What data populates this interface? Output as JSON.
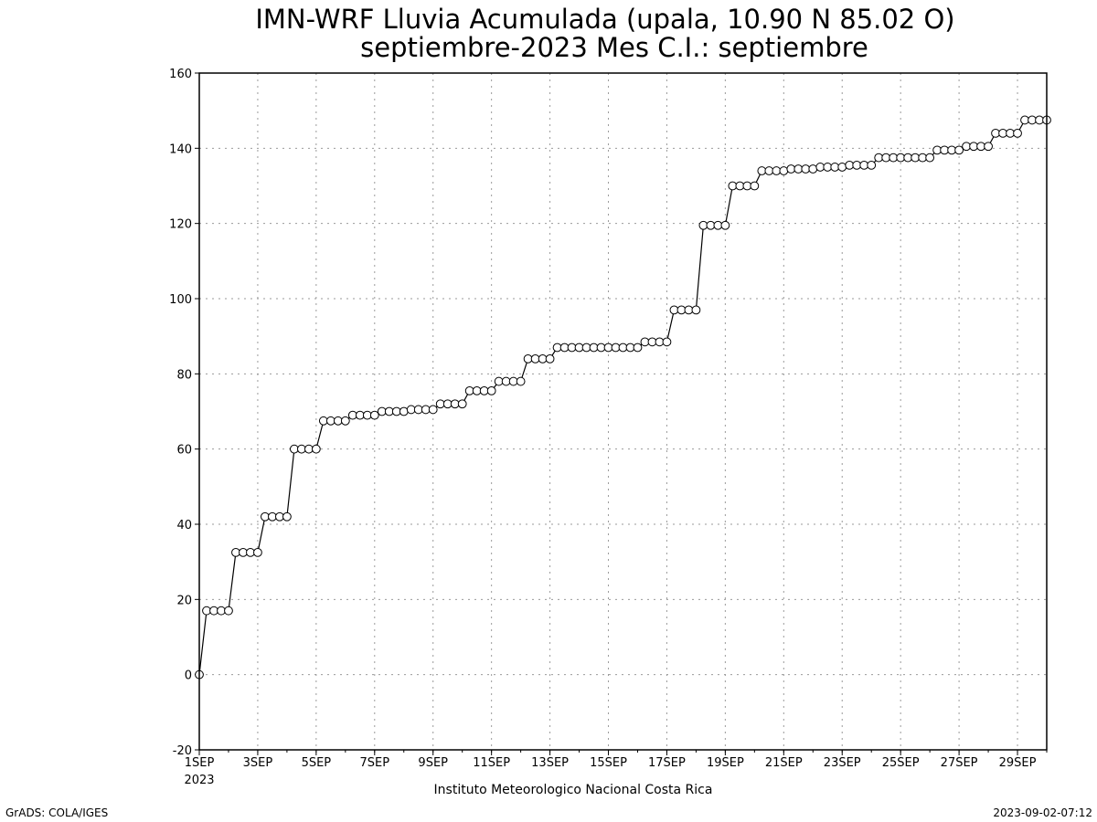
{
  "chart_data": {
    "type": "line",
    "title": "IMN-WRF  Lluvia Acumulada (upala, 10.90  N 85.02  O)",
    "subtitle": "septiembre-2023 Mes C.I.: septiembre",
    "xlabel": "",
    "ylabel": "",
    "x_unit": "day of September 2023",
    "xlim": [
      1,
      30.0
    ],
    "ylim": [
      -20,
      160
    ],
    "y_ticks": [
      -20,
      0,
      20,
      40,
      60,
      80,
      100,
      120,
      140,
      160
    ],
    "x_ticks": [
      {
        "x": 1,
        "label": "1SEP"
      },
      {
        "x": 3,
        "label": "3SEP"
      },
      {
        "x": 5,
        "label": "5SEP"
      },
      {
        "x": 7,
        "label": "7SEP"
      },
      {
        "x": 9,
        "label": "9SEP"
      },
      {
        "x": 11,
        "label": "11SEP"
      },
      {
        "x": 13,
        "label": "13SEP"
      },
      {
        "x": 15,
        "label": "15SEP"
      },
      {
        "x": 17,
        "label": "17SEP"
      },
      {
        "x": 19,
        "label": "19SEP"
      },
      {
        "x": 21,
        "label": "21SEP"
      },
      {
        "x": 23,
        "label": "23SEP"
      },
      {
        "x": 25,
        "label": "25SEP"
      },
      {
        "x": 27,
        "label": "27SEP"
      },
      {
        "x": 29,
        "label": "29SEP"
      }
    ],
    "x_year_label": "2023",
    "grid": true,
    "marker": "open-circle",
    "line_color": "#000000",
    "values": [
      0,
      17,
      17,
      17,
      17,
      32.5,
      32.5,
      32.5,
      32.5,
      42,
      42,
      42,
      42,
      60,
      60,
      60,
      60,
      67.5,
      67.5,
      67.5,
      67.5,
      69,
      69,
      69,
      69,
      70,
      70,
      70,
      70,
      70.5,
      70.5,
      70.5,
      70.5,
      72,
      72,
      72,
      72,
      75.5,
      75.5,
      75.5,
      75.5,
      78,
      78,
      78,
      78,
      84,
      84,
      84,
      84,
      87,
      87,
      87,
      87,
      87,
      87,
      87,
      87,
      87,
      87,
      87,
      87,
      88.5,
      88.5,
      88.5,
      88.5,
      97,
      97,
      97,
      97,
      119.5,
      119.5,
      119.5,
      119.5,
      130,
      130,
      130,
      130,
      134,
      134,
      134,
      134,
      134.5,
      134.5,
      134.5,
      134.5,
      135,
      135,
      135,
      135,
      135.5,
      135.5,
      135.5,
      135.5,
      137.5,
      137.5,
      137.5,
      137.5,
      137.5,
      137.5,
      137.5,
      137.5,
      139.5,
      139.5,
      139.5,
      139.5,
      140.5,
      140.5,
      140.5,
      140.5,
      144,
      144,
      144,
      144,
      147.5,
      147.5,
      147.5,
      147.5
    ]
  },
  "footer": {
    "institution": "Instituto Meteorologico Nacional Costa Rica",
    "left": "GrADS: COLA/IGES",
    "right": "2023-09-02-07:12"
  }
}
